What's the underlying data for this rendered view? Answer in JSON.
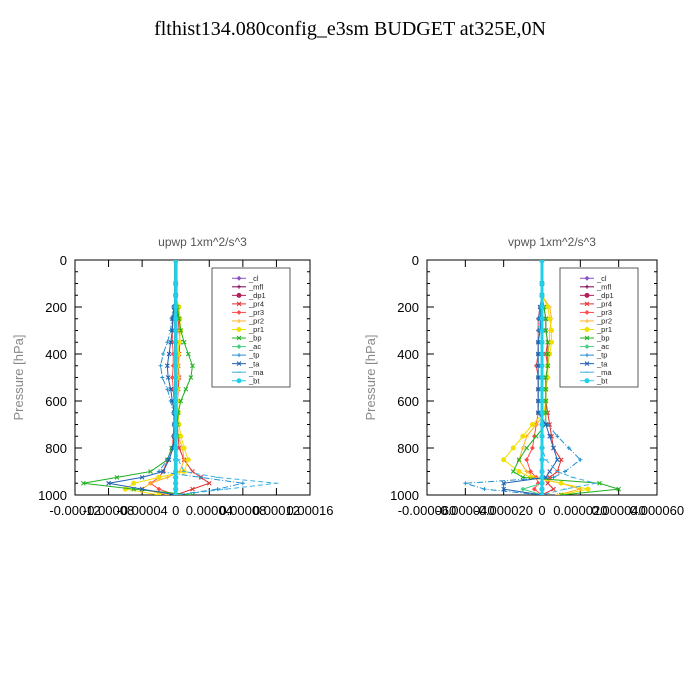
{
  "title": "flthist134.080config_e3sm  BUDGET at325E,0N",
  "legend_items": [
    {
      "label": "_cl",
      "color": "#8a52c8",
      "marker": "diamond"
    },
    {
      "label": "_mfl",
      "color": "#7a0050",
      "marker": "plus"
    },
    {
      "label": "_dp1",
      "color": "#b0205a",
      "marker": "circle"
    },
    {
      "label": "_pr4",
      "color": "#e03030",
      "marker": "cross"
    },
    {
      "label": "_pr3",
      "color": "#ff4a4a",
      "marker": "diamond"
    },
    {
      "label": "_pr2",
      "color": "#ffb020",
      "marker": "plus"
    },
    {
      "label": "_pr1",
      "color": "#f0e000",
      "marker": "circle"
    },
    {
      "label": "_bp",
      "color": "#20b020",
      "marker": "cross"
    },
    {
      "label": "_ac",
      "color": "#40d080",
      "marker": "diamond"
    },
    {
      "label": "_tp",
      "color": "#2090d0",
      "marker": "plus"
    },
    {
      "label": "_ta",
      "color": "#2060b0",
      "marker": "cross"
    },
    {
      "label": "_ma",
      "color": "#40b0e0",
      "marker": "dash"
    },
    {
      "label": "_bt",
      "color": "#20d0e8",
      "marker": "circle"
    }
  ],
  "chart_data": [
    {
      "type": "line",
      "title": "upwp   1xm^2/s^3",
      "ylabel": "Pressure [hPa]",
      "xlabel": "",
      "ylim": [
        1000,
        0
      ],
      "xlim": [
        -0.00012,
        0.00016
      ],
      "y_ticks": [
        0,
        200,
        400,
        600,
        800,
        1000
      ],
      "x_ticks": [
        -0.00012,
        -8e-05,
        -4e-05,
        0,
        4e-05,
        8e-05,
        0.00012,
        0.00016
      ],
      "x_tick_labels": [
        "-0.00012",
        "-0.00008",
        "-0.00004",
        "0",
        "0.00004",
        "0.00008",
        "0.00012",
        "0.00016"
      ],
      "legend_position": "top-right",
      "pressure": [
        0,
        100,
        150,
        200,
        250,
        300,
        350,
        400,
        450,
        500,
        550,
        600,
        650,
        700,
        750,
        800,
        850,
        900,
        925,
        950,
        975,
        1000
      ],
      "series": [
        {
          "label_ref": 0,
          "values": [
            0,
            0,
            0,
            0,
            0,
            0,
            0,
            0,
            0,
            0,
            0,
            0,
            0,
            0,
            0,
            0,
            0,
            0,
            0,
            0,
            0,
            0
          ]
        },
        {
          "label_ref": 1,
          "values": [
            0,
            0,
            0,
            0,
            0,
            0,
            0,
            0,
            0,
            0,
            0,
            0,
            0,
            0,
            0,
            0,
            0,
            0,
            0,
            0,
            0,
            0
          ]
        },
        {
          "label_ref": 2,
          "values": [
            0,
            0,
            0,
            0,
            0,
            0,
            0,
            0,
            0,
            0,
            0,
            0,
            0,
            0,
            0,
            0,
            0,
            0,
            0,
            0,
            0,
            0
          ]
        },
        {
          "label_ref": 3,
          "values": [
            0,
            0,
            0,
            2e-06,
            3e-06,
            4e-06,
            5e-06,
            4e-06,
            3e-06,
            4e-06,
            3e-06,
            2e-06,
            2e-06,
            2e-06,
            3e-06,
            4e-06,
            1e-05,
            2e-05,
            3e-05,
            4e-05,
            2e-05,
            0
          ]
        },
        {
          "label_ref": 4,
          "values": [
            0,
            0,
            0,
            -2e-06,
            -3e-06,
            -4e-06,
            -4e-06,
            -3e-06,
            -3e-06,
            -4e-06,
            -3e-06,
            -2e-06,
            -2e-06,
            -2e-06,
            -3e-06,
            -4e-06,
            -1e-05,
            -1.5e-05,
            -2e-05,
            -3e-05,
            -2e-05,
            0
          ]
        },
        {
          "label_ref": 5,
          "values": [
            0,
            0,
            0,
            3e-06,
            4e-06,
            5e-06,
            4e-06,
            3e-06,
            3e-06,
            3e-06,
            2e-06,
            2e-06,
            3e-06,
            2e-06,
            3e-06,
            8e-06,
            1e-05,
            5e-06,
            -1e-05,
            -3e-05,
            -4e-05,
            -1e-05
          ]
        },
        {
          "label_ref": 6,
          "values": [
            0,
            0,
            0,
            4e-06,
            5e-06,
            6e-06,
            4e-06,
            3e-06,
            2e-06,
            2e-06,
            2e-06,
            2e-06,
            3e-06,
            4e-06,
            6e-06,
            1e-05,
            1.5e-05,
            1e-05,
            -2e-05,
            -5e-05,
            -6e-05,
            -2e-05
          ]
        },
        {
          "label_ref": 7,
          "values": [
            0,
            0,
            0,
            2e-06,
            4e-06,
            6e-06,
            1e-05,
            1.5e-05,
            2e-05,
            1.8e-05,
            1.2e-05,
            6e-06,
            3e-06,
            2e-06,
            2e-06,
            -5e-06,
            -1e-05,
            -3e-05,
            -7e-05,
            -0.00011,
            -5e-05,
            2e-05
          ]
        },
        {
          "label_ref": 8,
          "values": [
            0,
            0,
            0,
            0,
            0,
            0,
            0,
            0,
            0,
            0,
            0,
            0,
            0,
            0,
            0,
            0,
            0,
            0,
            0,
            0,
            0,
            0
          ]
        },
        {
          "label_ref": 9,
          "values": [
            0,
            0,
            0,
            -3e-06,
            -5e-06,
            -6e-06,
            -1e-05,
            -1.5e-05,
            -1.8e-05,
            -1.6e-05,
            -1e-05,
            -6e-06,
            -3e-06,
            -2e-06,
            -2e-06,
            -4e-06,
            -1e-05,
            -2e-05,
            3e-05,
            8e-05,
            5e-05,
            0
          ]
        },
        {
          "label_ref": 10,
          "values": [
            0,
            0,
            0,
            -2e-06,
            -4e-06,
            -4e-06,
            -6e-06,
            -8e-06,
            -1e-05,
            -9e-06,
            -6e-06,
            -4e-06,
            -2e-06,
            -2e-06,
            -2e-06,
            -3e-06,
            -8e-06,
            -1.5e-05,
            -4e-05,
            -8e-05,
            -4e-05,
            0
          ]
        },
        {
          "label_ref": 11,
          "values": [
            0,
            0,
            0,
            0,
            0,
            0,
            0,
            0,
            0,
            0,
            0,
            0,
            0,
            0,
            0,
            0,
            3e-06,
            1e-05,
            5e-05,
            0.00012,
            6e-05,
            0
          ]
        },
        {
          "label_ref": 12,
          "values": [
            0,
            0,
            0,
            0,
            0,
            0,
            0,
            0,
            0,
            0,
            0,
            0,
            0,
            0,
            0,
            0,
            0,
            0,
            0,
            0,
            0,
            0
          ]
        }
      ]
    },
    {
      "type": "line",
      "title": "vpwp   1xm^2/s^3",
      "ylabel": "Pressure [hPa]",
      "xlabel": "",
      "ylim": [
        1000,
        0
      ],
      "xlim": [
        -6e-05,
        6e-05
      ],
      "y_ticks": [
        0,
        200,
        400,
        600,
        800,
        1000
      ],
      "x_ticks": [
        -6e-05,
        -4e-05,
        -2e-05,
        0,
        2e-05,
        4e-05,
        6e-05
      ],
      "x_tick_labels": [
        "-0.000060",
        "-0.000040",
        "-0.000020",
        "0",
        "0.000020",
        "0.000040",
        "0.000060"
      ],
      "legend_position": "top-right",
      "pressure": [
        0,
        100,
        150,
        200,
        250,
        300,
        350,
        400,
        450,
        500,
        550,
        600,
        650,
        700,
        750,
        800,
        850,
        900,
        925,
        950,
        975,
        1000
      ],
      "series": [
        {
          "label_ref": 0,
          "values": [
            0,
            0,
            0,
            0,
            0,
            0,
            0,
            0,
            0,
            0,
            0,
            0,
            0,
            0,
            0,
            0,
            0,
            0,
            0,
            0,
            0,
            0
          ]
        },
        {
          "label_ref": 1,
          "values": [
            0,
            0,
            0,
            0,
            0,
            0,
            0,
            0,
            0,
            0,
            0,
            0,
            0,
            0,
            0,
            0,
            0,
            0,
            0,
            0,
            0,
            0
          ]
        },
        {
          "label_ref": 2,
          "values": [
            0,
            0,
            0,
            0,
            0,
            0,
            0,
            0,
            0,
            0,
            0,
            0,
            0,
            0,
            0,
            0,
            0,
            0,
            0,
            0,
            0,
            0
          ]
        },
        {
          "label_ref": 3,
          "values": [
            0,
            0,
            0,
            1e-06,
            2e-06,
            2e-06,
            3e-06,
            2e-06,
            3e-06,
            2e-06,
            2e-06,
            2e-06,
            3e-06,
            4e-06,
            5e-06,
            6e-06,
            1e-05,
            8e-06,
            4e-06,
            3e-06,
            6e-06,
            0
          ]
        },
        {
          "label_ref": 4,
          "values": [
            0,
            0,
            0,
            -1e-06,
            -2e-06,
            -2e-06,
            -2e-06,
            -2e-06,
            -3e-06,
            -2e-06,
            -2e-06,
            -2e-06,
            -2e-06,
            -3e-06,
            -4e-06,
            -5e-06,
            -8e-06,
            -6e-06,
            -3e-06,
            -2e-06,
            -4e-06,
            0
          ]
        },
        {
          "label_ref": 5,
          "values": [
            0,
            0,
            0,
            4e-06,
            5e-06,
            4e-06,
            4e-06,
            3e-06,
            3e-06,
            3e-06,
            2e-06,
            2e-06,
            2e-06,
            -3e-06,
            -8e-06,
            -1e-05,
            -1.2e-05,
            -8e-06,
            -4e-06,
            1e-05,
            2e-05,
            8e-06
          ]
        },
        {
          "label_ref": 6,
          "values": [
            0,
            0,
            0,
            3e-06,
            4e-06,
            5e-06,
            5e-06,
            4e-06,
            3e-06,
            3e-06,
            2e-06,
            2e-06,
            1e-06,
            -5e-06,
            -1e-05,
            -1.5e-05,
            -2e-05,
            -1.2e-05,
            -6e-06,
            1e-05,
            2.4e-05,
            1e-05
          ]
        },
        {
          "label_ref": 7,
          "values": [
            0,
            0,
            0,
            1e-06,
            2e-06,
            2e-06,
            3e-06,
            3e-06,
            3e-06,
            2e-06,
            2e-06,
            2e-06,
            2e-06,
            2e-06,
            -3e-06,
            -8e-06,
            -1.2e-05,
            -1.5e-05,
            -1e-05,
            3e-05,
            4e-05,
            1e-05
          ]
        },
        {
          "label_ref": 8,
          "values": [
            0,
            0,
            0,
            0,
            0,
            0,
            0,
            0,
            0,
            0,
            0,
            0,
            0,
            0,
            0,
            0,
            0,
            0,
            0,
            0,
            -1e-05,
            0
          ]
        },
        {
          "label_ref": 9,
          "values": [
            0,
            0,
            0,
            -1e-06,
            -2e-06,
            -2e-06,
            -2e-06,
            -2e-06,
            -2e-06,
            -2e-06,
            -2e-06,
            -2e-06,
            -2e-06,
            3e-06,
            8e-06,
            1.4e-05,
            2e-05,
            1.2e-05,
            6e-06,
            -4e-05,
            -3e-05,
            0
          ]
        },
        {
          "label_ref": 10,
          "values": [
            0,
            0,
            0,
            -1e-06,
            -1e-06,
            -1e-06,
            -2e-06,
            -2e-06,
            -2e-06,
            -2e-06,
            -2e-06,
            -2e-06,
            -2e-06,
            2e-06,
            4e-06,
            6e-06,
            8e-06,
            4e-06,
            2e-06,
            -2e-05,
            -2e-05,
            0
          ]
        },
        {
          "label_ref": 11,
          "values": [
            0,
            0,
            0,
            0,
            0,
            0,
            0,
            0,
            0,
            0,
            0,
            0,
            0,
            0,
            0,
            0,
            2e-06,
            8e-06,
            1.6e-05,
            2.8e-05,
            1.2e-05,
            0
          ]
        },
        {
          "label_ref": 12,
          "values": [
            0,
            0,
            0,
            0,
            0,
            0,
            0,
            0,
            0,
            0,
            0,
            0,
            0,
            0,
            0,
            0,
            0,
            0,
            0,
            0,
            0,
            0
          ]
        }
      ]
    }
  ]
}
